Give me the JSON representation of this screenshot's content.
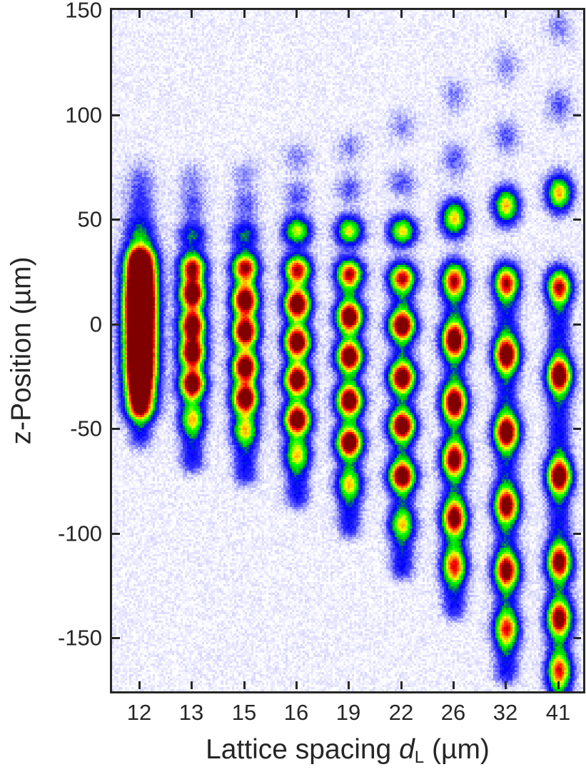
{
  "chart_data": {
    "type": "heatmap",
    "title": "",
    "xlabel": {
      "prefix": "Lattice spacing ",
      "symbol": "d",
      "subscript": "L",
      "suffix": " (µm)"
    },
    "ylabel": "z-Position (µm)",
    "xticks": [
      "12",
      "13",
      "15",
      "16",
      "19",
      "22",
      "26",
      "32",
      "41"
    ],
    "yticks": [
      150,
      100,
      50,
      0,
      -50,
      -100,
      -150
    ],
    "ylim": [
      -175,
      150
    ],
    "colormap": [
      "#ffffff",
      "#0000ff",
      "#00ff00",
      "#ffff00",
      "#ff0000",
      "#800000"
    ],
    "grid": false,
    "legend": null,
    "series": [
      {
        "name": "12",
        "spots_z_um": [
          70,
          58,
          43,
          28,
          15,
          5,
          -7,
          -20,
          -33
        ],
        "elongated": true
      },
      {
        "name": "13",
        "spots_z_um": [
          70,
          58,
          43,
          28,
          15,
          0,
          -13,
          -28,
          -45
        ]
      },
      {
        "name": "15",
        "spots_z_um": [
          72,
          58,
          43,
          28,
          12,
          -3,
          -20,
          -35,
          -50
        ]
      },
      {
        "name": "16",
        "spots_z_um": [
          80,
          62,
          45,
          27,
          10,
          -8,
          -26,
          -45,
          -62
        ]
      },
      {
        "name": "19",
        "spots_z_um": [
          85,
          65,
          45,
          25,
          4,
          -15,
          -36,
          -56,
          -76
        ]
      },
      {
        "name": "22",
        "spots_z_um": [
          95,
          68,
          45,
          23,
          0,
          -25,
          -48,
          -72,
          -95
        ]
      },
      {
        "name": "26",
        "spots_z_um": [
          110,
          79,
          51,
          22,
          -7,
          -37,
          -64,
          -92,
          -115
        ]
      },
      {
        "name": "32",
        "spots_z_um": [
          124,
          90,
          57,
          21,
          -14,
          -51,
          -86,
          -117,
          -145
        ]
      },
      {
        "name": "41",
        "spots_z_um": [
          142,
          105,
          63,
          19,
          -24,
          -72,
          -113,
          -140,
          -165
        ]
      }
    ]
  },
  "axes": {
    "ytick_labels": [
      "150",
      "100",
      "50",
      "0",
      "-50",
      "-100",
      "-150"
    ],
    "xtick_labels": [
      "12",
      "13",
      "15",
      "16",
      "19",
      "22",
      "26",
      "32",
      "41"
    ],
    "ylabel": "z-Position (µm)",
    "xlabel_prefix": "Lattice spacing ",
    "xlabel_symbol": "d",
    "xlabel_sub": "L",
    "xlabel_suffix": " (µm)"
  }
}
